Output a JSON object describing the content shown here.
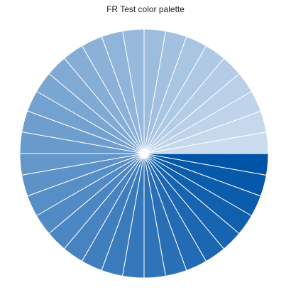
{
  "chart_data": {
    "type": "pie",
    "title": "FR Test color palette",
    "slice_count": 36,
    "values": [
      1,
      1,
      1,
      1,
      1,
      1,
      1,
      1,
      1,
      1,
      1,
      1,
      1,
      1,
      1,
      1,
      1,
      1,
      1,
      1,
      1,
      1,
      1,
      1,
      1,
      1,
      1,
      1,
      1,
      1,
      1,
      1,
      1,
      1,
      1,
      1
    ],
    "palette_start": "#cbdcee",
    "palette_end": "#0054a8",
    "slice_border_color": "#ffffff",
    "legend": "none"
  }
}
